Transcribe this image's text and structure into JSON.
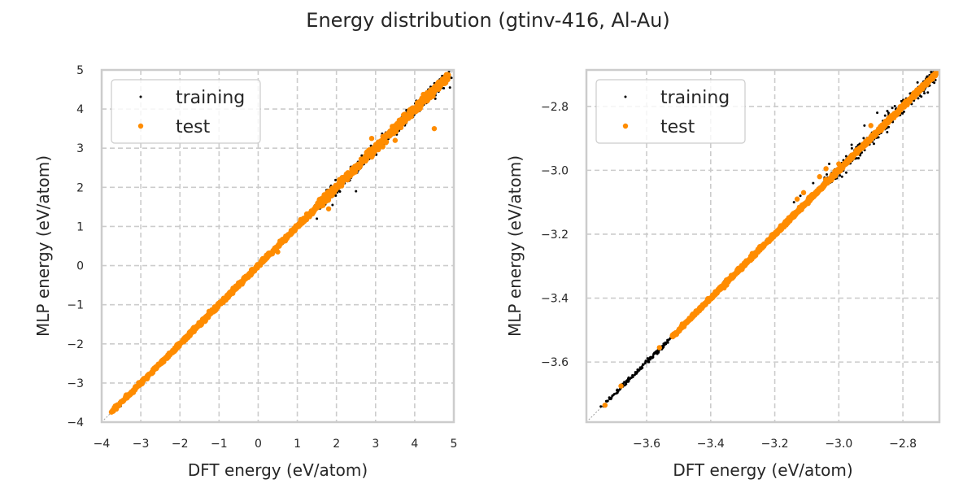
{
  "figure": {
    "title": "Energy distribution (gtinv-416, Al-Au)"
  },
  "colors": {
    "training": "#000000",
    "test": "#ff8c00",
    "grid": "#cccccc",
    "frame": "#cccccc",
    "diagonal": "#a0a0a0",
    "text": "#262626"
  },
  "chart_data": [
    {
      "type": "scatter",
      "title": "",
      "xlabel": "DFT energy (eV/atom)",
      "ylabel": "MLP energy (eV/atom)",
      "xlim": [
        -4,
        5
      ],
      "ylim": [
        -4,
        5
      ],
      "xticks": [
        -4,
        -3,
        -2,
        -1,
        0,
        1,
        2,
        3,
        4,
        5
      ],
      "xtick_labels": [
        "−4",
        "−3",
        "−2",
        "−1",
        "0",
        "1",
        "2",
        "3",
        "4",
        "5"
      ],
      "yticks": [
        -4,
        -3,
        -2,
        -1,
        0,
        1,
        2,
        3,
        4,
        5
      ],
      "ytick_labels": [
        "−4",
        "−3",
        "−2",
        "−1",
        "0",
        "1",
        "2",
        "3",
        "4",
        "5"
      ],
      "grid": true,
      "legend": {
        "position": "top-left",
        "entries": [
          "training",
          "test"
        ]
      },
      "reference_line": "y = x",
      "series": [
        {
          "name": "training",
          "color": "#000000",
          "dense_range": [
            -3.75,
            4.9
          ],
          "scatter_regions": [
            {
              "from": 1.5,
              "to": 4.9,
              "spread": 0.12
            },
            {
              "from": 0.5,
              "to": 1.5,
              "spread": 0.04
            }
          ],
          "outliers": [
            [
              1.9,
              1.55
            ],
            [
              2.5,
              1.9
            ],
            [
              3.8,
              3.7
            ],
            [
              4.9,
              4.55
            ],
            [
              1.5,
              1.2
            ]
          ]
        },
        {
          "name": "test",
          "color": "#ff8c00",
          "dense_range": [
            -3.75,
            4.85
          ],
          "scatter_regions": [
            {
              "from": 1.5,
              "to": 4.9,
              "spread": 0.08
            }
          ],
          "outliers": [
            [
              4.5,
              3.5
            ],
            [
              3.5,
              3.2
            ],
            [
              2.9,
              3.25
            ],
            [
              1.8,
              1.45
            ],
            [
              0.5,
              0.35
            ],
            [
              -3.7,
              -3.72
            ]
          ]
        }
      ]
    },
    {
      "type": "scatter",
      "title": "",
      "xlabel": "DFT energy (eV/atom)",
      "ylabel": "MLP energy (eV/atom)",
      "xlim": [
        -3.788,
        -2.686
      ],
      "ylim": [
        -3.788,
        -2.686
      ],
      "xticks": [
        -3.6,
        -3.4,
        -3.2,
        -3.0,
        -2.8
      ],
      "xtick_labels": [
        "−3.6",
        "−3.4",
        "−3.2",
        "−3.0",
        "−2.8"
      ],
      "yticks": [
        -3.6,
        -3.4,
        -3.2,
        -3.0,
        -2.8
      ],
      "ytick_labels": [
        "−3.6",
        "−3.4",
        "−3.2",
        "−3.0",
        "−2.8"
      ],
      "grid": true,
      "legend": {
        "position": "top-left",
        "entries": [
          "training",
          "test"
        ]
      },
      "reference_line": "y = x",
      "series": [
        {
          "name": "training",
          "color": "#000000",
          "dense_range": [
            -3.74,
            -2.69
          ],
          "scatter_regions": [
            {
              "from": -3.05,
              "to": -2.69,
              "spread": 0.02
            }
          ],
          "outliers": [
            [
              -3.14,
              -3.1
            ],
            [
              -3.12,
              -3.08
            ],
            [
              -3.08,
              -3.04
            ],
            [
              -3.03,
              -2.98
            ],
            [
              -2.96,
              -2.92
            ],
            [
              -2.92,
              -2.86
            ],
            [
              -2.88,
              -2.82
            ],
            [
              -2.99,
              -3.02
            ]
          ]
        },
        {
          "name": "test",
          "color": "#ff8c00",
          "dense_range": [
            -3.52,
            -2.69
          ],
          "scatter_regions": [],
          "outliers": [
            [
              -3.73,
              -3.735
            ],
            [
              -3.68,
              -3.675
            ],
            [
              -3.56,
              -3.555
            ],
            [
              -3.13,
              -3.09
            ],
            [
              -3.11,
              -3.07
            ],
            [
              -3.06,
              -3.02
            ],
            [
              -3.04,
              -2.995
            ],
            [
              -2.9,
              -2.86
            ],
            [
              -3.0,
              -2.98
            ]
          ]
        }
      ]
    }
  ]
}
